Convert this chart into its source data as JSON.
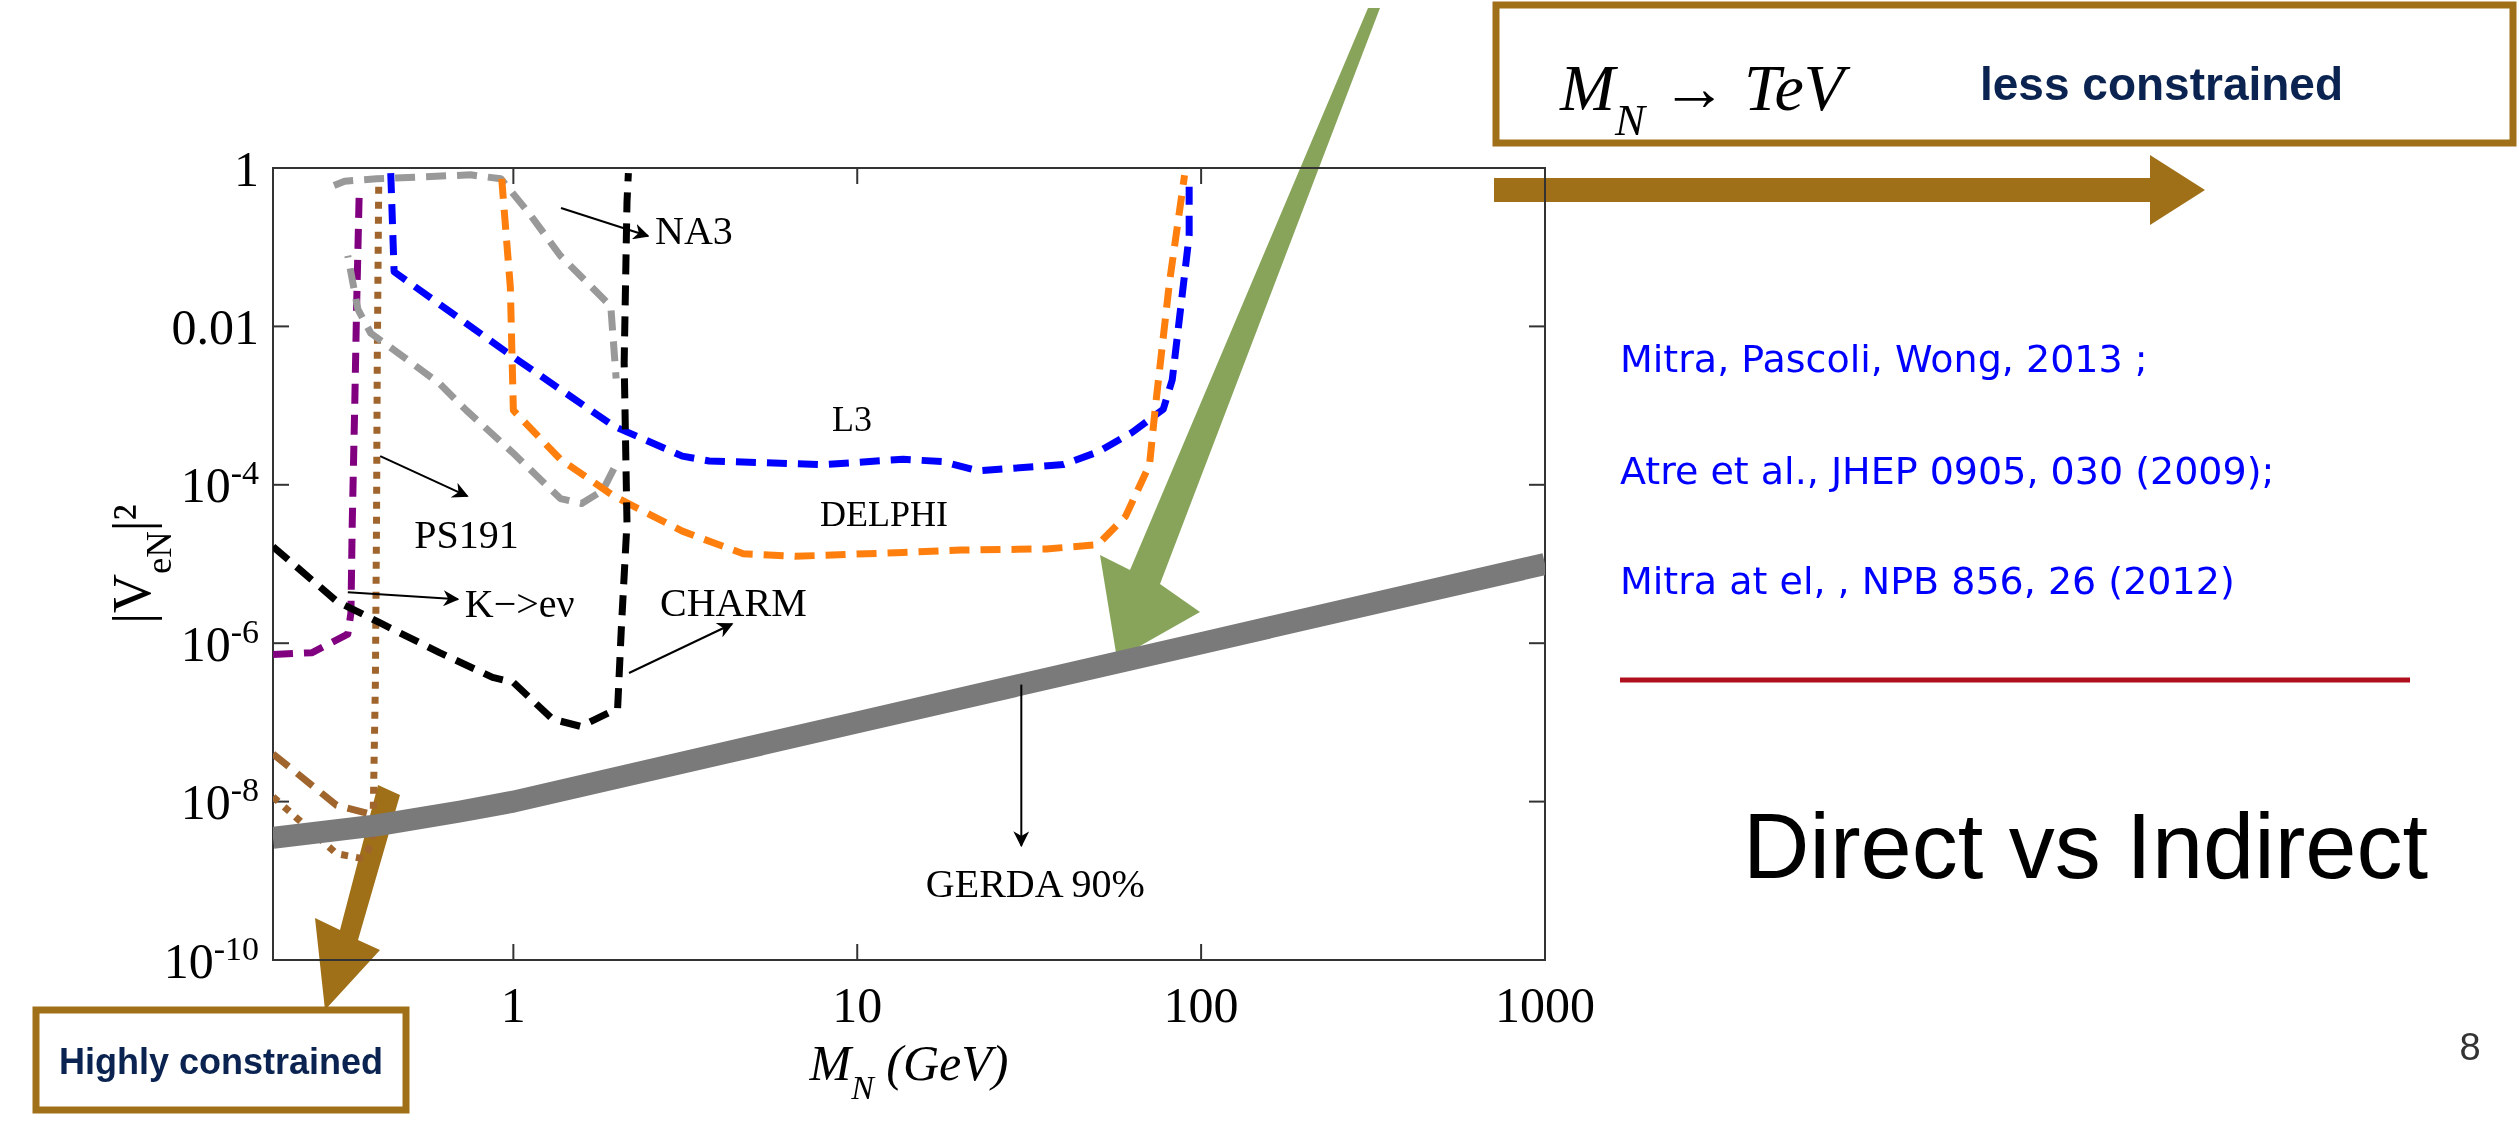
{
  "chart_data": {
    "type": "line",
    "xlabel": "M$_{N}$ (GeV)",
    "ylabel": "|V$_{eN}$|²",
    "log": "xy",
    "grid": false,
    "xlim": [
      0.2,
      1000
    ],
    "ylim": [
      1e-10,
      1
    ],
    "xticks": [
      1,
      10,
      100,
      1000
    ],
    "yticks": [
      {
        "value": 1e-10,
        "label": "10$^{-10}$"
      },
      {
        "value": 1e-08,
        "label": "10$^{-8}$"
      },
      {
        "value": 1e-06,
        "label": "10$^{-6}$"
      },
      {
        "value": 0.0001,
        "label": "10$^{-4}$"
      },
      0.01,
      1
    ],
    "series": [
      {
        "color": "#800080",
        "line_style": "dashed",
        "x": [
          0.2,
          0.26,
          0.33,
          0.337,
          0.34,
          0.346,
          0.35,
          0.356
        ],
        "values": [
          7.2e-07,
          7.6e-07,
          1.3e-06,
          2.4e-06,
          3.3e-05,
          0.0012,
          0.017,
          0.43
        ]
      },
      {
        "color": "#a0642d",
        "line_style": "dotted",
        "x": [
          0.2,
          0.306,
          0.366,
          0.39,
          0.397,
          0.4,
          0.402,
          0.406
        ],
        "values": [
          1.15e-08,
          2.2e-09,
          1.9e-09,
          3.1e-09,
          3.2e-07,
          3.3e-05,
          0.0035,
          0.68
        ]
      },
      {
        "color": "#a0642d",
        "line_style": "dashed",
        "x": [
          0.2,
          0.306,
          0.386
        ],
        "values": [
          4e-08,
          9e-09,
          6.9e-09
        ]
      },
      {
        "color": "#999999",
        "line_style": "dashed",
        "x": [
          0.301,
          0.323,
          0.4,
          0.75,
          0.92,
          1.11,
          1.37,
          1.92,
          1.99
        ],
        "values": [
          0.6,
          0.68,
          0.73,
          0.82,
          0.73,
          0.27,
          0.078,
          0.018,
          0.0022
        ]
      },
      {
        "color": "#999999",
        "line_style": "dashed",
        "x": [
          1.96,
          1.82,
          1.58,
          1.37,
          1.0,
          0.73,
          0.61,
          0.48,
          0.385,
          0.353,
          0.33
        ],
        "values": [
          0.00016,
          8.5e-05,
          5.8e-05,
          6.7e-05,
          0.00025,
          0.00087,
          0.0019,
          0.0041,
          0.0082,
          0.0165,
          0.078
        ]
      },
      {
        "color": "#0000ff",
        "line_style": "dashed",
        "x": [
          0.44,
          0.45,
          1.0,
          1.96,
          3.1,
          3.71,
          7.97,
          13.6,
          17.8,
          22.4,
          39.8,
          50.1,
          63.1,
          77.6,
          82.4,
          92.3,
          92.3
        ],
        "values": [
          0.86,
          0.049,
          0.0041,
          0.00055,
          0.00023,
          0.0002,
          0.00018,
          0.00021,
          0.000196,
          0.00015,
          0.00018,
          0.00026,
          0.00046,
          0.0009,
          0.0021,
          0.14,
          0.58
        ]
      },
      {
        "color": "#ff7f0e",
        "line_style": "dashed",
        "x": [
          0.925,
          0.98,
          1.0,
          1.37,
          1.96,
          3.1,
          3.43,
          4.66,
          6.6,
          13.6,
          20,
          35.5,
          50,
          60.3,
          70.8,
          73.5,
          80.9,
          89.5
        ],
        "values": [
          0.73,
          0.031,
          0.00087,
          0.00021,
          7.2e-05,
          2.6e-05,
          2.2e-05,
          1.35e-05,
          1.25e-05,
          1.4e-05,
          1.5e-05,
          1.55e-05,
          1.75e-05,
          4e-05,
          0.00018,
          0.0009,
          0.036,
          0.81
        ]
      },
      {
        "color": "#000000",
        "line_style": "dashed",
        "x": [
          0.2,
          0.306,
          0.41,
          0.61,
          0.87,
          1.0,
          1.3,
          1.57,
          2.01,
          2.06,
          2.14,
          2.1,
          2.14,
          2.16
        ],
        "values": [
          1.66e-05,
          3.4e-06,
          1.8e-06,
          7.6e-07,
          3.7e-07,
          3.2e-07,
          1.1e-07,
          8.9e-08,
          1.5e-07,
          1.5e-06,
          3.3e-05,
          0.0035,
          0.37,
          0.86
        ]
      },
      {
        "color": "#7a7a7a",
        "line_style": "solid",
        "x": [
          0.2,
          0.4,
          0.7,
          1,
          10,
          100,
          1000
        ],
        "values": [
          3.5e-09,
          5e-09,
          7.5e-09,
          1e-08,
          1e-07,
          1e-06,
          1e-05
        ]
      }
    ],
    "annotations": [
      "NA3",
      {
        "text": "PS191",
        "x": 0.41,
        "y": 0.00023
      },
      {
        "text": "K−>eν",
        "x": 0.33,
        "y": 4.4e-06
      },
      "CHARM",
      {
        "text": "GERDA 90%",
        "x": 30,
        "y": 3e-07
      },
      "L3",
      "DELPHI",
      "M$_{N}$ → TeV",
      "less constrained",
      "Highly constrained",
      "Mitra, Pascoli, Wong, 2013 ;",
      "Atre et al., JHEP 0905, 030 (2009);",
      "Mitra at el, , NPB 856, 26 (2012)",
      "Direct vs Indirect",
      "8"
    ]
  }
}
